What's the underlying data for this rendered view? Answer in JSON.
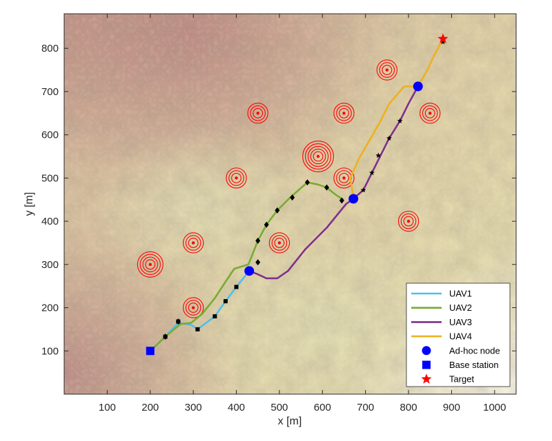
{
  "chart_data": {
    "type": "line",
    "xlabel": "x [m]",
    "ylabel": "y [m]",
    "xlim": [
      0,
      1050
    ],
    "ylim": [
      0,
      880
    ],
    "x_ticks": [
      100,
      200,
      300,
      400,
      500,
      600,
      700,
      800,
      900,
      1000
    ],
    "y_ticks": [
      100,
      200,
      300,
      400,
      500,
      600,
      700,
      800
    ],
    "grid": false,
    "legend_position": "bottom-right",
    "background": "terrain elevation map",
    "series": [
      {
        "name": "UAV1",
        "color": "#4DBEEE",
        "points": [
          [
            200,
            100
          ],
          [
            235,
            133
          ],
          [
            265,
            165
          ],
          [
            295,
            160
          ],
          [
            310,
            150
          ],
          [
            330,
            165
          ],
          [
            350,
            180
          ],
          [
            375,
            215
          ],
          [
            400,
            248
          ],
          [
            430,
            285
          ]
        ],
        "waypoints": [
          [
            235,
            133
          ],
          [
            265,
            168
          ],
          [
            310,
            150
          ],
          [
            350,
            180
          ],
          [
            375,
            215
          ],
          [
            400,
            248
          ]
        ]
      },
      {
        "name": "UAV2",
        "color": "#77AC30",
        "points": [
          [
            200,
            100
          ],
          [
            235,
            133
          ],
          [
            270,
            162
          ],
          [
            295,
            165
          ],
          [
            320,
            185
          ],
          [
            350,
            222
          ],
          [
            375,
            260
          ],
          [
            395,
            290
          ],
          [
            428,
            300
          ],
          [
            440,
            330
          ],
          [
            450,
            355
          ],
          [
            470,
            392
          ],
          [
            495,
            425
          ],
          [
            525,
            455
          ],
          [
            565,
            490
          ],
          [
            590,
            485
          ],
          [
            610,
            478
          ],
          [
            630,
            462
          ],
          [
            648,
            450
          ]
        ],
        "waypoints": [
          [
            235,
            133
          ],
          [
            265,
            168
          ],
          [
            450,
            305
          ],
          [
            450,
            355
          ],
          [
            470,
            392
          ],
          [
            495,
            425
          ],
          [
            530,
            455
          ],
          [
            565,
            490
          ],
          [
            610,
            478
          ],
          [
            645,
            448
          ]
        ]
      },
      {
        "name": "UAV3",
        "color": "#7E2F8E",
        "points": [
          [
            430,
            285
          ],
          [
            448,
            278
          ],
          [
            470,
            268
          ],
          [
            495,
            268
          ],
          [
            520,
            285
          ],
          [
            560,
            335
          ],
          [
            610,
            385
          ],
          [
            655,
            440
          ],
          [
            672,
            452
          ],
          [
            695,
            472
          ],
          [
            715,
            512
          ],
          [
            735,
            552
          ],
          [
            755,
            592
          ],
          [
            780,
            632
          ],
          [
            800,
            672
          ],
          [
            822,
            712
          ]
        ],
        "waypoints": [
          [
            695,
            472
          ],
          [
            715,
            512
          ],
          [
            730,
            552
          ],
          [
            755,
            592
          ],
          [
            780,
            632
          ]
        ]
      },
      {
        "name": "UAV4",
        "color": "#EDB120",
        "points": [
          [
            672,
            452
          ],
          [
            665,
            500
          ],
          [
            685,
            545
          ],
          [
            712,
            592
          ],
          [
            735,
            632
          ],
          [
            755,
            672
          ],
          [
            790,
            712
          ],
          [
            822,
            712
          ],
          [
            845,
            752
          ],
          [
            860,
            785
          ],
          [
            880,
            822
          ]
        ],
        "waypoints": [
          [
            880,
            815
          ]
        ]
      }
    ],
    "adhoc_nodes": {
      "name": "Ad-hoc node",
      "color": "#0000FF",
      "points": [
        [
          430,
          285
        ],
        [
          672,
          452
        ],
        [
          822,
          712
        ]
      ]
    },
    "base_station": {
      "name": "Base station",
      "color": "#0000FF",
      "point": [
        200,
        100
      ]
    },
    "target": {
      "name": "Target",
      "color": "#FF0000",
      "point": [
        880,
        822
      ]
    },
    "threats": {
      "color": "#FF0000",
      "items": [
        {
          "x": 200,
          "y": 300,
          "rings": 4
        },
        {
          "x": 300,
          "y": 350,
          "rings": 3
        },
        {
          "x": 300,
          "y": 200,
          "rings": 3
        },
        {
          "x": 400,
          "y": 500,
          "rings": 3
        },
        {
          "x": 450,
          "y": 650,
          "rings": 3
        },
        {
          "x": 500,
          "y": 350,
          "rings": 3
        },
        {
          "x": 590,
          "y": 550,
          "rings": 5
        },
        {
          "x": 650,
          "y": 650,
          "rings": 3
        },
        {
          "x": 650,
          "y": 500,
          "rings": 3
        },
        {
          "x": 750,
          "y": 750,
          "rings": 3
        },
        {
          "x": 800,
          "y": 400,
          "rings": 3
        },
        {
          "x": 850,
          "y": 650,
          "rings": 3
        }
      ]
    }
  }
}
